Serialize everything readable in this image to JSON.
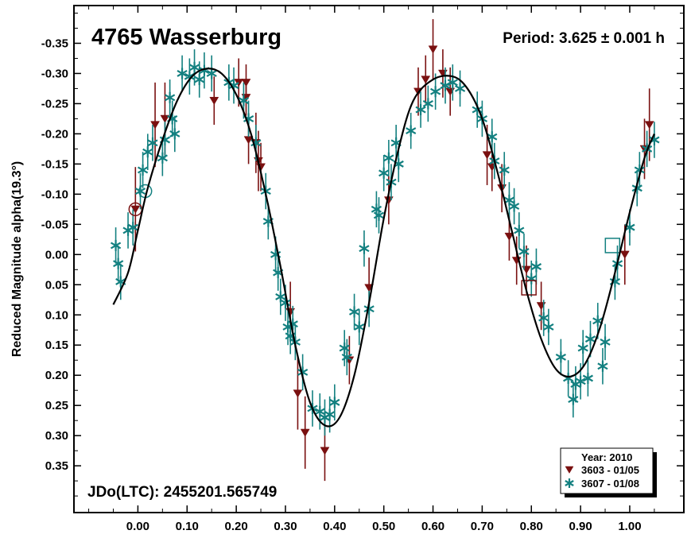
{
  "chart_data": {
    "type": "scatter",
    "title": "4765 Wasserburg",
    "period_label": "Period: 3.625 ± 0.001 h",
    "epoch_label": "JDo(LTC): 2455201.565749",
    "ylabel": "Reduced Magnitude alpha(19.3°)",
    "xlabel": "",
    "xlim": [
      -0.13,
      1.11
    ],
    "ylim": [
      -0.4125,
      0.4275
    ],
    "y_inverted": true,
    "x_ticks": [
      0.0,
      0.1,
      0.2,
      0.3,
      0.4,
      0.5,
      0.6,
      0.7,
      0.8,
      0.9,
      1.0
    ],
    "x_tick_labels": [
      "0.00",
      "0.10",
      "0.20",
      "0.30",
      "0.40",
      "0.50",
      "0.60",
      "0.70",
      "0.80",
      "0.90",
      "1.00"
    ],
    "y_ticks": [
      -0.35,
      -0.3,
      -0.25,
      -0.2,
      -0.15,
      -0.1,
      -0.05,
      0.0,
      0.05,
      0.1,
      0.15,
      0.2,
      0.25,
      0.3,
      0.35
    ],
    "y_tick_labels": [
      "-0.35",
      "-0.30",
      "-0.25",
      "-0.20",
      "-0.15",
      "-0.10",
      "-0.05",
      "0.00",
      "0.05",
      "0.10",
      "0.15",
      "0.20",
      "0.25",
      "0.30",
      "0.35"
    ],
    "legend": {
      "title": "Year: 2010",
      "placement": "bottom-right",
      "entries": [
        {
          "label": "3603 - 01/05",
          "marker": "triangle-down",
          "color": "#7a1010"
        },
        {
          "label": "3607 - 01/08",
          "marker": "asterisk",
          "color": "#138080"
        }
      ]
    },
    "fit_curve": {
      "color": "#000000",
      "points": [
        [
          -0.05,
          0.083
        ],
        [
          -0.02,
          0.03
        ],
        [
          0.0,
          -0.04
        ],
        [
          0.02,
          -0.11
        ],
        [
          0.05,
          -0.19
        ],
        [
          0.08,
          -0.255
        ],
        [
          0.11,
          -0.295
        ],
        [
          0.14,
          -0.308
        ],
        [
          0.17,
          -0.3
        ],
        [
          0.2,
          -0.265
        ],
        [
          0.23,
          -0.2
        ],
        [
          0.26,
          -0.1
        ],
        [
          0.29,
          0.02
        ],
        [
          0.32,
          0.15
        ],
        [
          0.35,
          0.245
        ],
        [
          0.38,
          0.283
        ],
        [
          0.41,
          0.27
        ],
        [
          0.44,
          0.2
        ],
        [
          0.47,
          0.08
        ],
        [
          0.5,
          -0.06
        ],
        [
          0.53,
          -0.175
        ],
        [
          0.56,
          -0.255
        ],
        [
          0.6,
          -0.29
        ],
        [
          0.64,
          -0.295
        ],
        [
          0.67,
          -0.275
        ],
        [
          0.7,
          -0.225
        ],
        [
          0.73,
          -0.14
        ],
        [
          0.76,
          -0.04
        ],
        [
          0.79,
          0.06
        ],
        [
          0.82,
          0.14
        ],
        [
          0.85,
          0.19
        ],
        [
          0.88,
          0.202
        ],
        [
          0.91,
          0.18
        ],
        [
          0.94,
          0.12
        ],
        [
          0.97,
          0.03
        ],
        [
          1.0,
          -0.07
        ],
        [
          1.03,
          -0.16
        ],
        [
          1.05,
          -0.2
        ]
      ]
    },
    "series": [
      {
        "name": "3603 - 01/05",
        "marker": "triangle-down",
        "color": "#7a1010",
        "points": [
          {
            "x": -0.005,
            "y": -0.075,
            "err": 0.07
          },
          {
            "x": 0.035,
            "y": -0.215,
            "err": 0.07
          },
          {
            "x": 0.055,
            "y": -0.225,
            "err": 0.06
          },
          {
            "x": 0.155,
            "y": -0.255,
            "err": 0.04
          },
          {
            "x": 0.205,
            "y": -0.285,
            "err": 0.04
          },
          {
            "x": 0.22,
            "y": -0.285,
            "err": 0.03
          },
          {
            "x": 0.22,
            "y": -0.26,
            "err": 0.03
          },
          {
            "x": 0.225,
            "y": -0.19,
            "err": 0.04
          },
          {
            "x": 0.24,
            "y": -0.185,
            "err": 0.05
          },
          {
            "x": 0.245,
            "y": -0.155,
            "err": 0.05
          },
          {
            "x": 0.25,
            "y": -0.145,
            "err": 0.04
          },
          {
            "x": 0.31,
            "y": 0.095,
            "err": 0.05
          },
          {
            "x": 0.325,
            "y": 0.23,
            "err": 0.06
          },
          {
            "x": 0.34,
            "y": 0.295,
            "err": 0.06
          },
          {
            "x": 0.38,
            "y": 0.325,
            "err": 0.05
          },
          {
            "x": 0.43,
            "y": 0.175,
            "err": 0.04
          },
          {
            "x": 0.47,
            "y": 0.055,
            "err": 0.05
          },
          {
            "x": 0.51,
            "y": -0.09,
            "err": 0.04
          },
          {
            "x": 0.57,
            "y": -0.27,
            "err": 0.04
          },
          {
            "x": 0.585,
            "y": -0.29,
            "err": 0.04
          },
          {
            "x": 0.6,
            "y": -0.34,
            "err": 0.05
          },
          {
            "x": 0.62,
            "y": -0.3,
            "err": 0.04
          },
          {
            "x": 0.635,
            "y": -0.27,
            "err": 0.04
          },
          {
            "x": 0.71,
            "y": -0.165,
            "err": 0.05
          },
          {
            "x": 0.72,
            "y": -0.145,
            "err": 0.04
          },
          {
            "x": 0.74,
            "y": -0.11,
            "err": 0.04
          },
          {
            "x": 0.755,
            "y": -0.03,
            "err": 0.04
          },
          {
            "x": 0.77,
            "y": 0.01,
            "err": 0.04
          },
          {
            "x": 0.79,
            "y": 0.025,
            "err": 0.04
          },
          {
            "x": 0.82,
            "y": 0.085,
            "err": 0.04
          },
          {
            "x": 0.99,
            "y": 0.0,
            "err": 0.05
          },
          {
            "x": 1.03,
            "y": -0.175,
            "err": 0.05
          },
          {
            "x": 1.04,
            "y": -0.215,
            "err": 0.06
          }
        ]
      },
      {
        "name": "3607 - 01/08",
        "marker": "asterisk",
        "color": "#138080",
        "points": [
          {
            "x": -0.045,
            "y": -0.015,
            "err": 0.03
          },
          {
            "x": -0.04,
            "y": 0.015,
            "err": 0.03
          },
          {
            "x": -0.035,
            "y": 0.045,
            "err": 0.03
          },
          {
            "x": -0.02,
            "y": -0.04,
            "err": 0.03
          },
          {
            "x": -0.01,
            "y": -0.045,
            "err": 0.03
          },
          {
            "x": 0.005,
            "y": -0.105,
            "err": 0.03
          },
          {
            "x": 0.01,
            "y": -0.14,
            "err": 0.03
          },
          {
            "x": 0.02,
            "y": -0.17,
            "err": 0.03
          },
          {
            "x": 0.03,
            "y": -0.185,
            "err": 0.03
          },
          {
            "x": 0.05,
            "y": -0.16,
            "err": 0.03
          },
          {
            "x": 0.055,
            "y": -0.19,
            "err": 0.03
          },
          {
            "x": 0.065,
            "y": -0.26,
            "err": 0.03
          },
          {
            "x": 0.07,
            "y": -0.225,
            "err": 0.03
          },
          {
            "x": 0.075,
            "y": -0.2,
            "err": 0.03
          },
          {
            "x": 0.09,
            "y": -0.3,
            "err": 0.03
          },
          {
            "x": 0.105,
            "y": -0.295,
            "err": 0.03
          },
          {
            "x": 0.115,
            "y": -0.31,
            "err": 0.03
          },
          {
            "x": 0.125,
            "y": -0.29,
            "err": 0.03
          },
          {
            "x": 0.135,
            "y": -0.305,
            "err": 0.03
          },
          {
            "x": 0.15,
            "y": -0.3,
            "err": 0.03
          },
          {
            "x": 0.185,
            "y": -0.285,
            "err": 0.03
          },
          {
            "x": 0.195,
            "y": -0.28,
            "err": 0.03
          },
          {
            "x": 0.215,
            "y": -0.255,
            "err": 0.03
          },
          {
            "x": 0.225,
            "y": -0.225,
            "err": 0.03
          },
          {
            "x": 0.24,
            "y": -0.185,
            "err": 0.03
          },
          {
            "x": 0.26,
            "y": -0.105,
            "err": 0.03
          },
          {
            "x": 0.265,
            "y": -0.055,
            "err": 0.03
          },
          {
            "x": 0.28,
            "y": 0.0,
            "err": 0.03
          },
          {
            "x": 0.285,
            "y": 0.03,
            "err": 0.03
          },
          {
            "x": 0.29,
            "y": 0.07,
            "err": 0.03
          },
          {
            "x": 0.3,
            "y": 0.08,
            "err": 0.03
          },
          {
            "x": 0.305,
            "y": 0.12,
            "err": 0.03
          },
          {
            "x": 0.31,
            "y": 0.135,
            "err": 0.03
          },
          {
            "x": 0.315,
            "y": 0.115,
            "err": 0.03
          },
          {
            "x": 0.32,
            "y": 0.145,
            "err": 0.03
          },
          {
            "x": 0.335,
            "y": 0.195,
            "err": 0.03
          },
          {
            "x": 0.355,
            "y": 0.255,
            "err": 0.03
          },
          {
            "x": 0.37,
            "y": 0.26,
            "err": 0.03
          },
          {
            "x": 0.38,
            "y": 0.27,
            "err": 0.03
          },
          {
            "x": 0.39,
            "y": 0.265,
            "err": 0.03
          },
          {
            "x": 0.4,
            "y": 0.245,
            "err": 0.03
          },
          {
            "x": 0.42,
            "y": 0.155,
            "err": 0.03
          },
          {
            "x": 0.425,
            "y": 0.17,
            "err": 0.03
          },
          {
            "x": 0.44,
            "y": 0.095,
            "err": 0.03
          },
          {
            "x": 0.45,
            "y": 0.12,
            "err": 0.03
          },
          {
            "x": 0.46,
            "y": -0.01,
            "err": 0.03
          },
          {
            "x": 0.47,
            "y": 0.09,
            "err": 0.03
          },
          {
            "x": 0.485,
            "y": -0.075,
            "err": 0.03
          },
          {
            "x": 0.49,
            "y": -0.065,
            "err": 0.03
          },
          {
            "x": 0.5,
            "y": -0.135,
            "err": 0.03
          },
          {
            "x": 0.51,
            "y": -0.16,
            "err": 0.03
          },
          {
            "x": 0.515,
            "y": -0.12,
            "err": 0.03
          },
          {
            "x": 0.525,
            "y": -0.185,
            "err": 0.03
          },
          {
            "x": 0.53,
            "y": -0.15,
            "err": 0.03
          },
          {
            "x": 0.555,
            "y": -0.205,
            "err": 0.03
          },
          {
            "x": 0.575,
            "y": -0.24,
            "err": 0.03
          },
          {
            "x": 0.59,
            "y": -0.25,
            "err": 0.03
          },
          {
            "x": 0.605,
            "y": -0.27,
            "err": 0.03
          },
          {
            "x": 0.625,
            "y": -0.28,
            "err": 0.03
          },
          {
            "x": 0.64,
            "y": -0.285,
            "err": 0.03
          },
          {
            "x": 0.655,
            "y": -0.275,
            "err": 0.03
          },
          {
            "x": 0.69,
            "y": -0.24,
            "err": 0.03
          },
          {
            "x": 0.7,
            "y": -0.225,
            "err": 0.03
          },
          {
            "x": 0.72,
            "y": -0.195,
            "err": 0.03
          },
          {
            "x": 0.725,
            "y": -0.155,
            "err": 0.03
          },
          {
            "x": 0.745,
            "y": -0.14,
            "err": 0.03
          },
          {
            "x": 0.755,
            "y": -0.09,
            "err": 0.03
          },
          {
            "x": 0.765,
            "y": -0.08,
            "err": 0.03
          },
          {
            "x": 0.775,
            "y": -0.04,
            "err": 0.03
          },
          {
            "x": 0.785,
            "y": -0.005,
            "err": 0.03
          },
          {
            "x": 0.8,
            "y": 0.04,
            "err": 0.03
          },
          {
            "x": 0.81,
            "y": 0.02,
            "err": 0.03
          },
          {
            "x": 0.825,
            "y": 0.105,
            "err": 0.03
          },
          {
            "x": 0.835,
            "y": 0.12,
            "err": 0.03
          },
          {
            "x": 0.86,
            "y": 0.17,
            "err": 0.03
          },
          {
            "x": 0.875,
            "y": 0.205,
            "err": 0.03
          },
          {
            "x": 0.885,
            "y": 0.24,
            "err": 0.03
          },
          {
            "x": 0.89,
            "y": 0.215,
            "err": 0.03
          },
          {
            "x": 0.9,
            "y": 0.21,
            "err": 0.03
          },
          {
            "x": 0.905,
            "y": 0.155,
            "err": 0.03
          },
          {
            "x": 0.915,
            "y": 0.205,
            "err": 0.03
          },
          {
            "x": 0.92,
            "y": 0.14,
            "err": 0.03
          },
          {
            "x": 0.935,
            "y": 0.11,
            "err": 0.03
          },
          {
            "x": 0.945,
            "y": 0.185,
            "err": 0.03
          },
          {
            "x": 0.95,
            "y": 0.145,
            "err": 0.03
          },
          {
            "x": 0.97,
            "y": 0.045,
            "err": 0.03
          },
          {
            "x": 0.975,
            "y": 0.015,
            "err": 0.03
          },
          {
            "x": 1.0,
            "y": -0.045,
            "err": 0.03
          },
          {
            "x": 1.015,
            "y": -0.11,
            "err": 0.03
          },
          {
            "x": 1.02,
            "y": -0.14,
            "err": 0.03
          },
          {
            "x": 1.035,
            "y": -0.175,
            "err": 0.03
          },
          {
            "x": 1.05,
            "y": -0.19,
            "err": 0.03
          }
        ]
      }
    ],
    "highlighted_points": [
      {
        "x": -0.005,
        "y": -0.075,
        "shape": "circle",
        "color": "#7a1010"
      },
      {
        "x": 0.015,
        "y": -0.105,
        "shape": "circle",
        "color": "#138080"
      },
      {
        "x": 0.795,
        "y": 0.055,
        "shape": "square",
        "color": "#7a1010"
      },
      {
        "x": 0.965,
        "y": -0.015,
        "shape": "square",
        "color": "#138080"
      }
    ]
  }
}
